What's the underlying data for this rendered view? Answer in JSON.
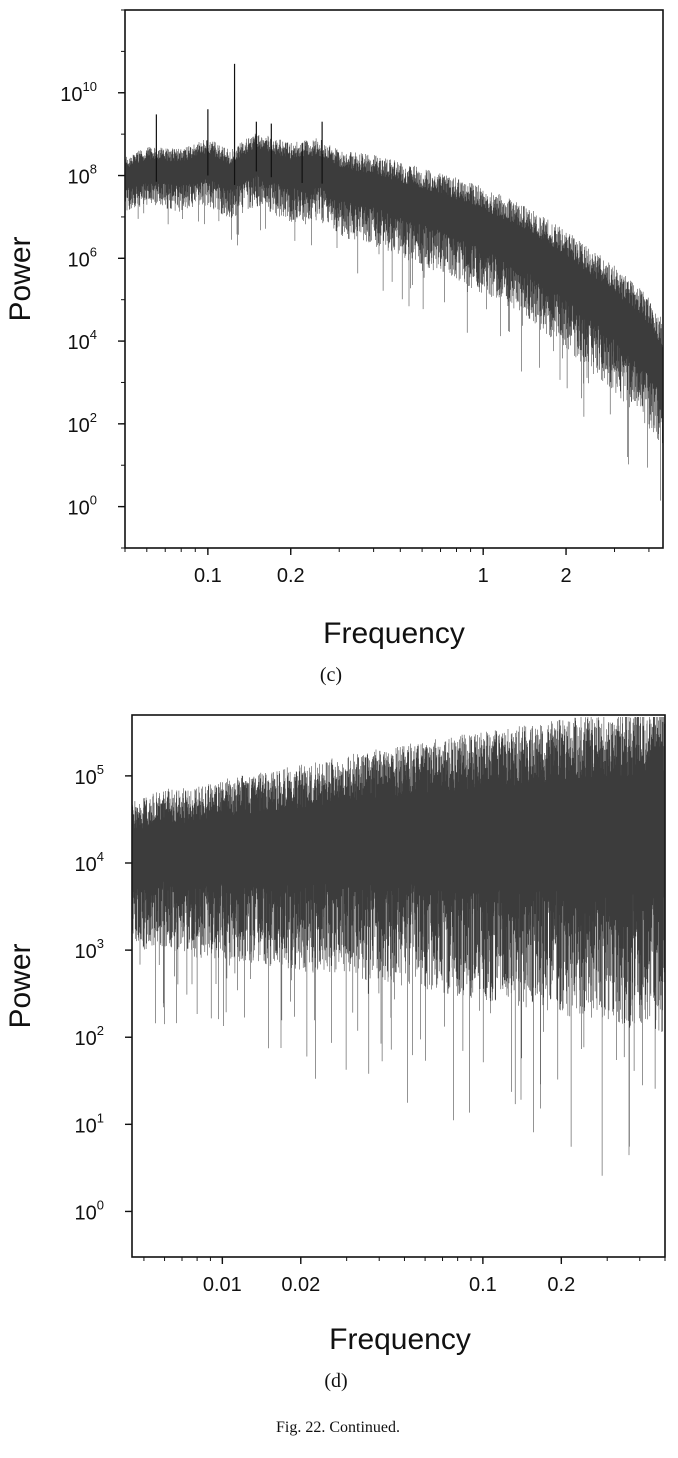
{
  "caption": "Fig. 22.  Continued.",
  "chart_data": [
    {
      "type": "line",
      "panel_label": "(c)",
      "xlabel": "Frequency",
      "ylabel": "Power",
      "x_scale": "log",
      "y_scale": "log",
      "xlim": [
        0.05,
        4.5
      ],
      "ylim": [
        0.1,
        1000000000000.0
      ],
      "x_ticks": [
        {
          "value": 0.1,
          "label": "0.1"
        },
        {
          "value": 0.2,
          "label": "0.2"
        },
        {
          "value": 1,
          "label": "1"
        },
        {
          "value": 2,
          "label": "2"
        }
      ],
      "y_ticks": [
        {
          "value": 1,
          "base": "10",
          "exp": "0"
        },
        {
          "value": 100,
          "base": "10",
          "exp": "2"
        },
        {
          "value": 10000,
          "base": "10",
          "exp": "4"
        },
        {
          "value": 1000000,
          "base": "10",
          "exp": "6"
        },
        {
          "value": 100000000,
          "base": "10",
          "exp": "8"
        },
        {
          "value": 10000000000,
          "base": "10",
          "exp": "10"
        }
      ],
      "envelope": {
        "x": [
          0.05,
          0.06,
          0.08,
          0.1,
          0.12,
          0.15,
          0.2,
          0.25,
          0.3,
          0.4,
          0.5,
          0.7,
          1.0,
          1.5,
          2.0,
          3.0,
          4.0,
          4.5
        ],
        "median": [
          90000000.0,
          150000000.0,
          120000000.0,
          200000000.0,
          100000000.0,
          250000000.0,
          120000000.0,
          150000000.0,
          70000000.0,
          50000000.0,
          30000000.0,
          15000000.0,
          6000000.0,
          1500000.0,
          400000.0,
          50000.0,
          8000.0,
          2000.0
        ]
      },
      "peaks": [
        {
          "x": 0.065,
          "y": 3000000000.0
        },
        {
          "x": 0.1,
          "y": 4000000000.0
        },
        {
          "x": 0.125,
          "y": 50000000000.0
        },
        {
          "x": 0.15,
          "y": 2000000000.0
        },
        {
          "x": 0.17,
          "y": 1800000000.0
        },
        {
          "x": 0.22,
          "y": 600000000.0
        },
        {
          "x": 0.26,
          "y": 2000000000.0
        }
      ]
    },
    {
      "type": "line",
      "panel_label": "(d)",
      "xlabel": "Frequency",
      "ylabel": "Power",
      "x_scale": "log",
      "y_scale": "log",
      "xlim": [
        0.0045,
        0.5
      ],
      "ylim": [
        0.3,
        500000.0
      ],
      "x_ticks": [
        {
          "value": 0.01,
          "label": "0.01"
        },
        {
          "value": 0.02,
          "label": "0.02"
        },
        {
          "value": 0.1,
          "label": "0.1"
        },
        {
          "value": 0.2,
          "label": "0.2"
        }
      ],
      "y_ticks": [
        {
          "value": 1,
          "base": "10",
          "exp": "0"
        },
        {
          "value": 10,
          "base": "10",
          "exp": "1"
        },
        {
          "value": 100,
          "base": "10",
          "exp": "2"
        },
        {
          "value": 1000,
          "base": "10",
          "exp": "3"
        },
        {
          "value": 10000,
          "base": "10",
          "exp": "4"
        },
        {
          "value": 100000,
          "base": "10",
          "exp": "5"
        }
      ],
      "envelope": {
        "x": [
          0.0045,
          0.006,
          0.008,
          0.01,
          0.015,
          0.02,
          0.03,
          0.05,
          0.08,
          0.1,
          0.15,
          0.2,
          0.3,
          0.5
        ],
        "median": [
          12000.0,
          15000.0,
          14000.0,
          16000.0,
          17000.0,
          18000.0,
          20000.0,
          22000.0,
          23000.0,
          24000.0,
          24000.0,
          25000.0,
          26000.0,
          27000.0
        ]
      },
      "peaks": []
    }
  ]
}
